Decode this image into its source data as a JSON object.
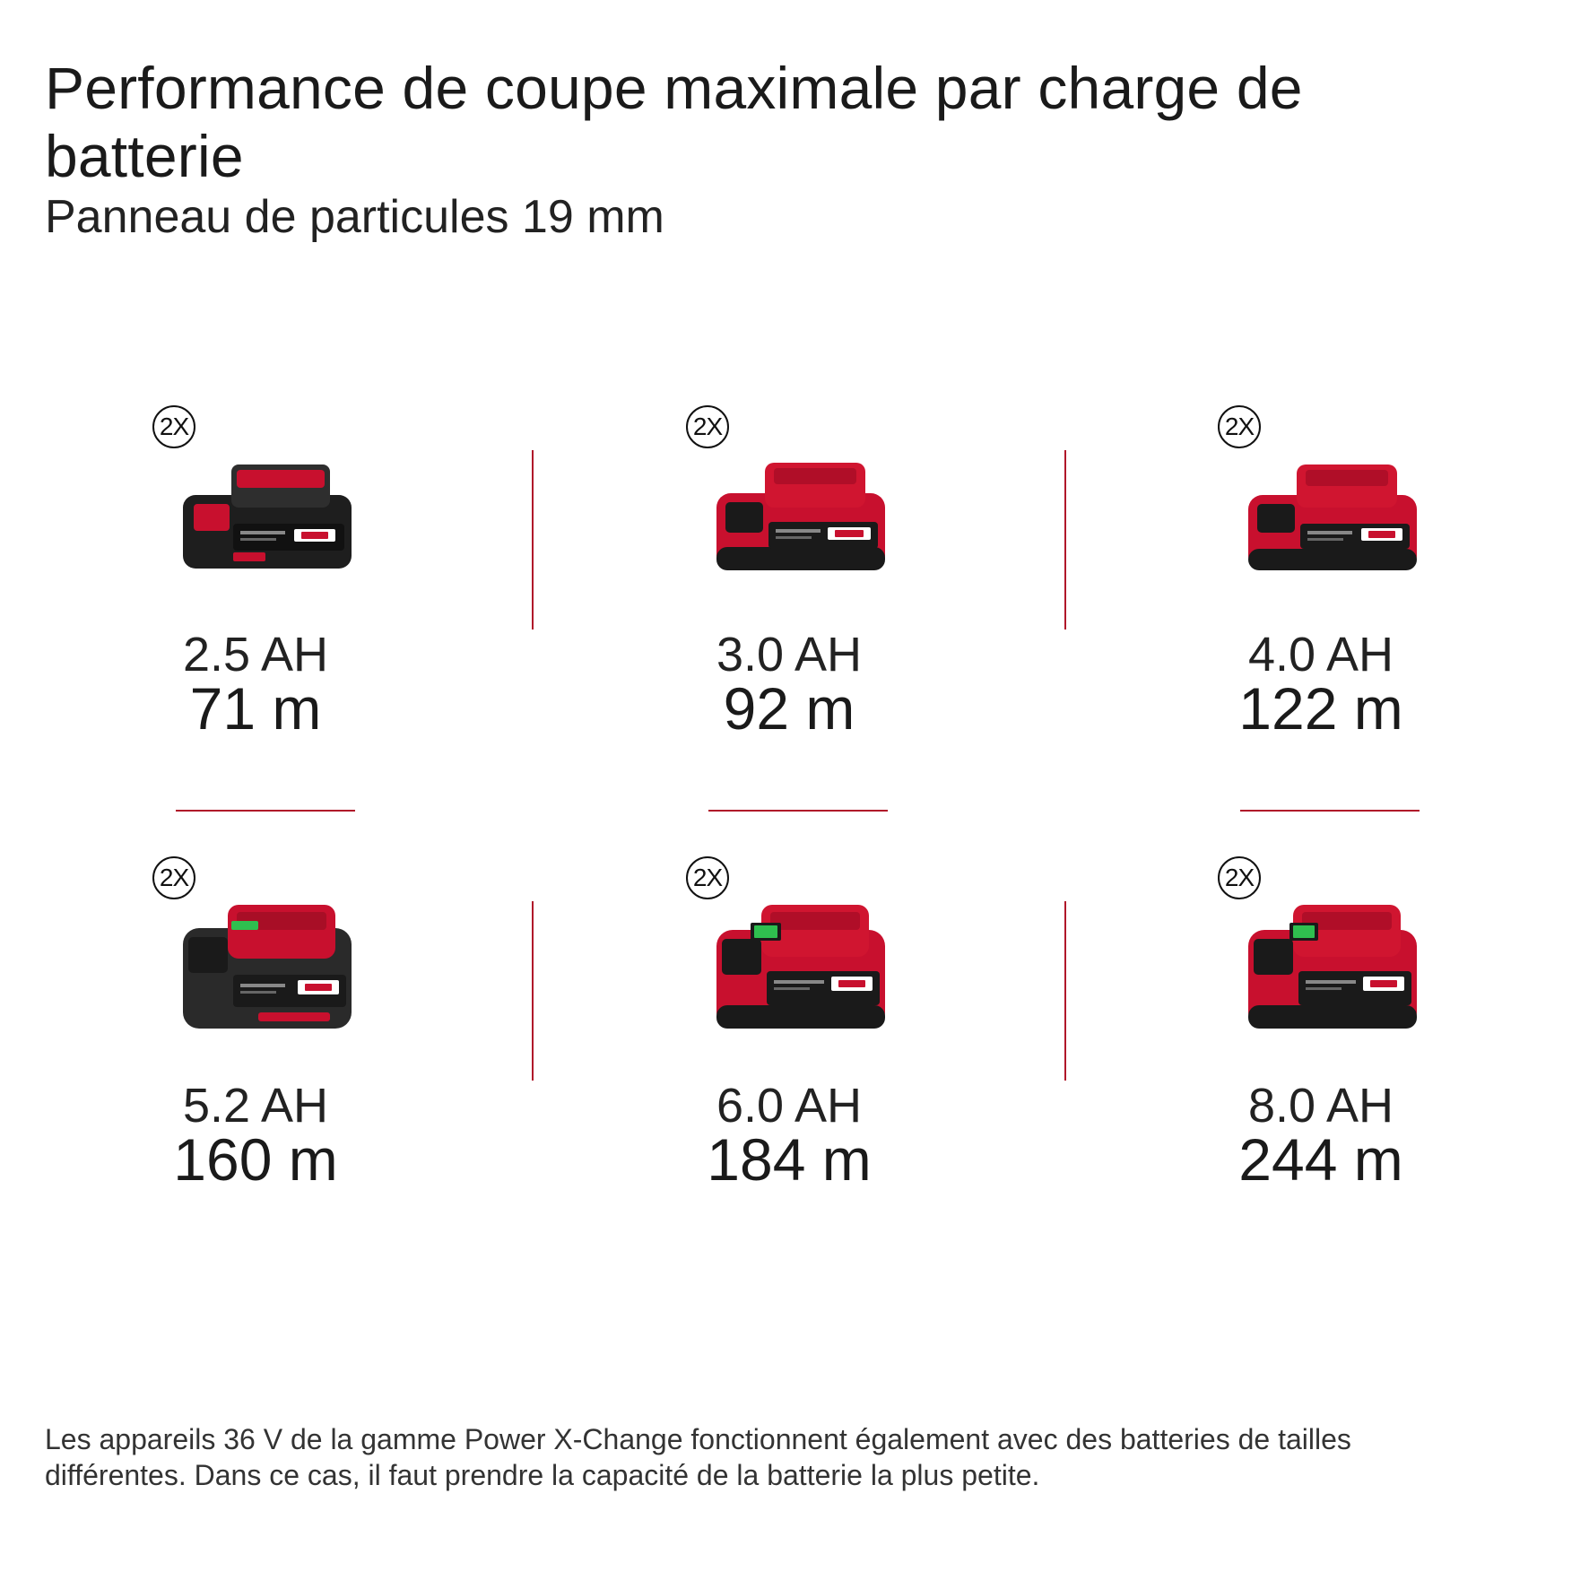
{
  "header": {
    "title": "Performance de coupe maximale par charge de batterie",
    "subtitle": "Panneau de particules 19 mm"
  },
  "batteries": [
    {
      "badge": "2X",
      "capacity": "2.5 AH",
      "distance": "71 m",
      "body_color": "#2a2a2a",
      "top_color": "#c8102e"
    },
    {
      "badge": "2X",
      "capacity": "3.0 AH",
      "distance": "92 m",
      "body_color": "#c8102e",
      "top_color": "#d01530"
    },
    {
      "badge": "2X",
      "capacity": "4.0 AH",
      "distance": "122 m",
      "body_color": "#c8102e",
      "top_color": "#d01530"
    },
    {
      "badge": "2X",
      "capacity": "5.2 AH",
      "distance": "160 m",
      "body_color": "#2a2a2a",
      "top_color": "#c8102e"
    },
    {
      "badge": "2X",
      "capacity": "6.0 AH",
      "distance": "184 m",
      "body_color": "#c8102e",
      "top_color": "#d01530"
    },
    {
      "badge": "2X",
      "capacity": "8.0 AH",
      "distance": "244 m",
      "body_color": "#c8102e",
      "top_color": "#d01530"
    }
  ],
  "footnote": "Les appareils 36 V de la gamme Power X-Change fonctionnent également avec des batteries de tailles différentes. Dans ce cas, il faut prendre la capacité de la batterie la plus petite.",
  "colors": {
    "divider": "#b0162a",
    "brand_red": "#c8102e"
  }
}
